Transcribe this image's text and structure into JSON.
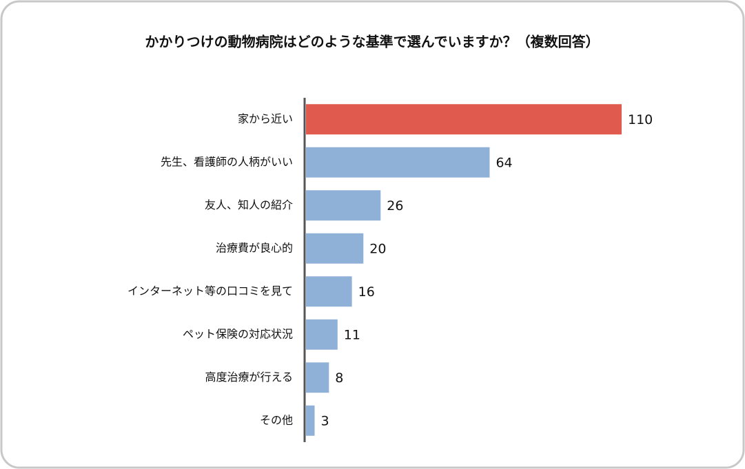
{
  "chart_data": {
    "type": "bar",
    "orientation": "horizontal",
    "title": "かかりつけの動物病院はどのような基準で選んでいますか？（複数回答）",
    "categories": [
      "家から近い",
      "先生、看護師の人柄がいい",
      "友人、知人の紹介",
      "治療費が良心的",
      "インターネット等の口コミを見て",
      "ペット保険の対応状況",
      "高度治療が行える",
      "その他"
    ],
    "values": [
      110,
      64,
      26,
      20,
      16,
      11,
      8,
      3
    ],
    "colors": [
      "#e05a4e",
      "#8fb1d8",
      "#8fb1d8",
      "#8fb1d8",
      "#8fb1d8",
      "#8fb1d8",
      "#8fb1d8",
      "#8fb1d8"
    ],
    "xlim": [
      0,
      110
    ]
  }
}
